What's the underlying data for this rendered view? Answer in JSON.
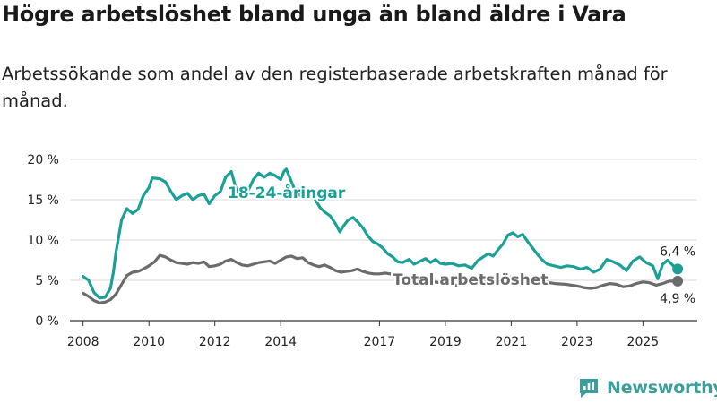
{
  "title": "Högre arbetslöshet bland unga än bland äldre i Vara",
  "subtitle": "Arbetssökande som andel av den registerbaserade arbetskraften månad för månad.",
  "brand": {
    "name": "Newsworthy",
    "color": "#3a9e9a"
  },
  "chart_data": {
    "type": "line",
    "title": "Högre arbetslöshet bland unga än bland äldre i Vara",
    "xlabel": "",
    "ylabel": "",
    "ylim": [
      0,
      20
    ],
    "xlim": [
      2007.6,
      2026.65
    ],
    "y_ticks": [
      0,
      5,
      10,
      15,
      20
    ],
    "y_tick_labels": [
      "0 %",
      "5 %",
      "10 %",
      "15 %",
      "20 %"
    ],
    "x_ticks": [
      2008,
      2010,
      2012,
      2014,
      2017,
      2019,
      2021,
      2023,
      2025
    ],
    "x_tick_labels": [
      "2008",
      "2010",
      "2012",
      "2014",
      "2017",
      "2019",
      "2021",
      "2023",
      "2025"
    ],
    "grid": true,
    "series": [
      {
        "name": "18-24-åringar",
        "color": "#1aa096",
        "end_label": "6,4 %",
        "points": [
          [
            2008.0,
            5.5
          ],
          [
            2008.17,
            5.0
          ],
          [
            2008.33,
            3.5
          ],
          [
            2008.5,
            2.8
          ],
          [
            2008.67,
            2.9
          ],
          [
            2008.83,
            4.0
          ],
          [
            2008.92,
            6.0
          ],
          [
            2009.0,
            8.5
          ],
          [
            2009.17,
            12.5
          ],
          [
            2009.33,
            13.9
          ],
          [
            2009.5,
            13.3
          ],
          [
            2009.67,
            13.8
          ],
          [
            2009.83,
            15.5
          ],
          [
            2010.0,
            16.5
          ],
          [
            2010.1,
            17.7
          ],
          [
            2010.33,
            17.6
          ],
          [
            2010.5,
            17.2
          ],
          [
            2010.67,
            16.0
          ],
          [
            2010.83,
            15.0
          ],
          [
            2011.0,
            15.5
          ],
          [
            2011.17,
            15.8
          ],
          [
            2011.33,
            15.0
          ],
          [
            2011.5,
            15.5
          ],
          [
            2011.67,
            15.7
          ],
          [
            2011.83,
            14.5
          ],
          [
            2012.0,
            15.5
          ],
          [
            2012.17,
            16.0
          ],
          [
            2012.33,
            17.8
          ],
          [
            2012.5,
            18.5
          ],
          [
            2012.67,
            16.0
          ],
          [
            2012.83,
            15.5
          ],
          [
            2013.0,
            16.0
          ],
          [
            2013.17,
            17.5
          ],
          [
            2013.33,
            18.3
          ],
          [
            2013.5,
            17.8
          ],
          [
            2013.67,
            18.3
          ],
          [
            2013.83,
            18.0
          ],
          [
            2014.0,
            17.5
          ],
          [
            2014.1,
            18.5
          ],
          [
            2014.17,
            18.8
          ],
          [
            2014.3,
            17.5
          ],
          [
            2014.45,
            16.0
          ],
          [
            2014.6,
            15.5
          ],
          [
            2014.75,
            15.2
          ],
          [
            2014.9,
            16.0
          ],
          [
            2015.05,
            15.0
          ],
          [
            2015.2,
            14.0
          ],
          [
            2015.33,
            13.5
          ],
          [
            2015.5,
            13.0
          ],
          [
            2015.67,
            12.0
          ],
          [
            2015.8,
            11.0
          ],
          [
            2015.9,
            11.7
          ],
          [
            2016.05,
            12.5
          ],
          [
            2016.2,
            12.8
          ],
          [
            2016.35,
            12.2
          ],
          [
            2016.5,
            11.5
          ],
          [
            2016.65,
            10.5
          ],
          [
            2016.8,
            9.8
          ],
          [
            2016.95,
            9.5
          ],
          [
            2017.1,
            9.0
          ],
          [
            2017.25,
            8.3
          ],
          [
            2017.4,
            7.9
          ],
          [
            2017.55,
            7.3
          ],
          [
            2017.7,
            7.2
          ],
          [
            2017.9,
            7.6
          ],
          [
            2018.05,
            7.0
          ],
          [
            2018.2,
            7.3
          ],
          [
            2018.4,
            7.7
          ],
          [
            2018.55,
            7.2
          ],
          [
            2018.7,
            7.6
          ],
          [
            2018.85,
            7.1
          ],
          [
            2019.0,
            7.0
          ],
          [
            2019.2,
            7.1
          ],
          [
            2019.4,
            6.8
          ],
          [
            2019.6,
            6.9
          ],
          [
            2019.8,
            6.5
          ],
          [
            2020.0,
            7.5
          ],
          [
            2020.15,
            7.9
          ],
          [
            2020.3,
            8.3
          ],
          [
            2020.45,
            8.0
          ],
          [
            2020.6,
            8.8
          ],
          [
            2020.75,
            9.5
          ],
          [
            2020.9,
            10.6
          ],
          [
            2021.05,
            10.9
          ],
          [
            2021.2,
            10.4
          ],
          [
            2021.35,
            10.7
          ],
          [
            2021.5,
            9.8
          ],
          [
            2021.65,
            9.0
          ],
          [
            2021.8,
            8.2
          ],
          [
            2021.95,
            7.5
          ],
          [
            2022.1,
            7.0
          ],
          [
            2022.3,
            6.8
          ],
          [
            2022.5,
            6.6
          ],
          [
            2022.7,
            6.8
          ],
          [
            2022.9,
            6.7
          ],
          [
            2023.1,
            6.4
          ],
          [
            2023.3,
            6.6
          ],
          [
            2023.5,
            6.0
          ],
          [
            2023.7,
            6.4
          ],
          [
            2023.9,
            7.6
          ],
          [
            2024.1,
            7.3
          ],
          [
            2024.3,
            6.9
          ],
          [
            2024.5,
            6.2
          ],
          [
            2024.7,
            7.4
          ],
          [
            2024.9,
            7.9
          ],
          [
            2025.1,
            7.2
          ],
          [
            2025.3,
            6.8
          ],
          [
            2025.45,
            5.2
          ],
          [
            2025.6,
            7.0
          ],
          [
            2025.75,
            7.5
          ],
          [
            2025.9,
            6.9
          ],
          [
            2026.0,
            6.4
          ]
        ]
      },
      {
        "name": "Total arbetslöshet",
        "color": "#6b6b6e",
        "end_label": "4,9 %",
        "points": [
          [
            2008.0,
            3.4
          ],
          [
            2008.17,
            3.0
          ],
          [
            2008.33,
            2.5
          ],
          [
            2008.5,
            2.2
          ],
          [
            2008.67,
            2.3
          ],
          [
            2008.83,
            2.6
          ],
          [
            2009.0,
            3.3
          ],
          [
            2009.17,
            4.5
          ],
          [
            2009.33,
            5.6
          ],
          [
            2009.5,
            6.0
          ],
          [
            2009.67,
            6.1
          ],
          [
            2009.83,
            6.4
          ],
          [
            2010.0,
            6.8
          ],
          [
            2010.17,
            7.3
          ],
          [
            2010.33,
            8.1
          ],
          [
            2010.5,
            7.9
          ],
          [
            2010.67,
            7.5
          ],
          [
            2010.83,
            7.2
          ],
          [
            2011.0,
            7.1
          ],
          [
            2011.17,
            7.0
          ],
          [
            2011.33,
            7.2
          ],
          [
            2011.5,
            7.1
          ],
          [
            2011.67,
            7.3
          ],
          [
            2011.83,
            6.7
          ],
          [
            2012.0,
            6.8
          ],
          [
            2012.17,
            7.0
          ],
          [
            2012.33,
            7.4
          ],
          [
            2012.5,
            7.6
          ],
          [
            2012.67,
            7.2
          ],
          [
            2012.83,
            6.9
          ],
          [
            2013.0,
            6.8
          ],
          [
            2013.17,
            7.0
          ],
          [
            2013.33,
            7.2
          ],
          [
            2013.5,
            7.3
          ],
          [
            2013.67,
            7.4
          ],
          [
            2013.83,
            7.1
          ],
          [
            2014.0,
            7.5
          ],
          [
            2014.17,
            7.9
          ],
          [
            2014.33,
            8.0
          ],
          [
            2014.5,
            7.7
          ],
          [
            2014.67,
            7.8
          ],
          [
            2014.83,
            7.2
          ],
          [
            2015.0,
            6.9
          ],
          [
            2015.17,
            6.7
          ],
          [
            2015.33,
            6.9
          ],
          [
            2015.5,
            6.6
          ],
          [
            2015.67,
            6.2
          ],
          [
            2015.83,
            6.0
          ],
          [
            2016.0,
            6.1
          ],
          [
            2016.17,
            6.2
          ],
          [
            2016.33,
            6.4
          ],
          [
            2016.5,
            6.1
          ],
          [
            2016.67,
            5.9
          ],
          [
            2016.83,
            5.8
          ],
          [
            2017.0,
            5.8
          ],
          [
            2017.17,
            5.9
          ],
          [
            2017.33,
            5.8
          ],
          [
            2017.5,
            5.7
          ],
          [
            2017.67,
            5.5
          ],
          [
            2017.83,
            5.4
          ],
          [
            2018.0,
            5.2
          ],
          [
            2018.33,
            5.0
          ],
          [
            2018.67,
            4.8
          ],
          [
            2019.0,
            4.6
          ],
          [
            2019.33,
            4.4
          ],
          [
            2019.67,
            4.6
          ],
          [
            2020.0,
            4.9
          ],
          [
            2020.33,
            5.1
          ],
          [
            2020.67,
            5.3
          ],
          [
            2021.0,
            5.4
          ],
          [
            2021.33,
            5.3
          ],
          [
            2021.67,
            5.0
          ],
          [
            2022.0,
            4.8
          ],
          [
            2022.33,
            4.6
          ],
          [
            2022.67,
            4.5
          ],
          [
            2023.0,
            4.3
          ],
          [
            2023.2,
            4.1
          ],
          [
            2023.4,
            4.0
          ],
          [
            2023.6,
            4.1
          ],
          [
            2023.8,
            4.4
          ],
          [
            2024.0,
            4.6
          ],
          [
            2024.2,
            4.5
          ],
          [
            2024.4,
            4.2
          ],
          [
            2024.6,
            4.3
          ],
          [
            2024.8,
            4.6
          ],
          [
            2025.0,
            4.8
          ],
          [
            2025.2,
            4.7
          ],
          [
            2025.4,
            4.4
          ],
          [
            2025.6,
            4.6
          ],
          [
            2025.8,
            4.9
          ],
          [
            2026.0,
            4.9
          ]
        ]
      }
    ]
  }
}
